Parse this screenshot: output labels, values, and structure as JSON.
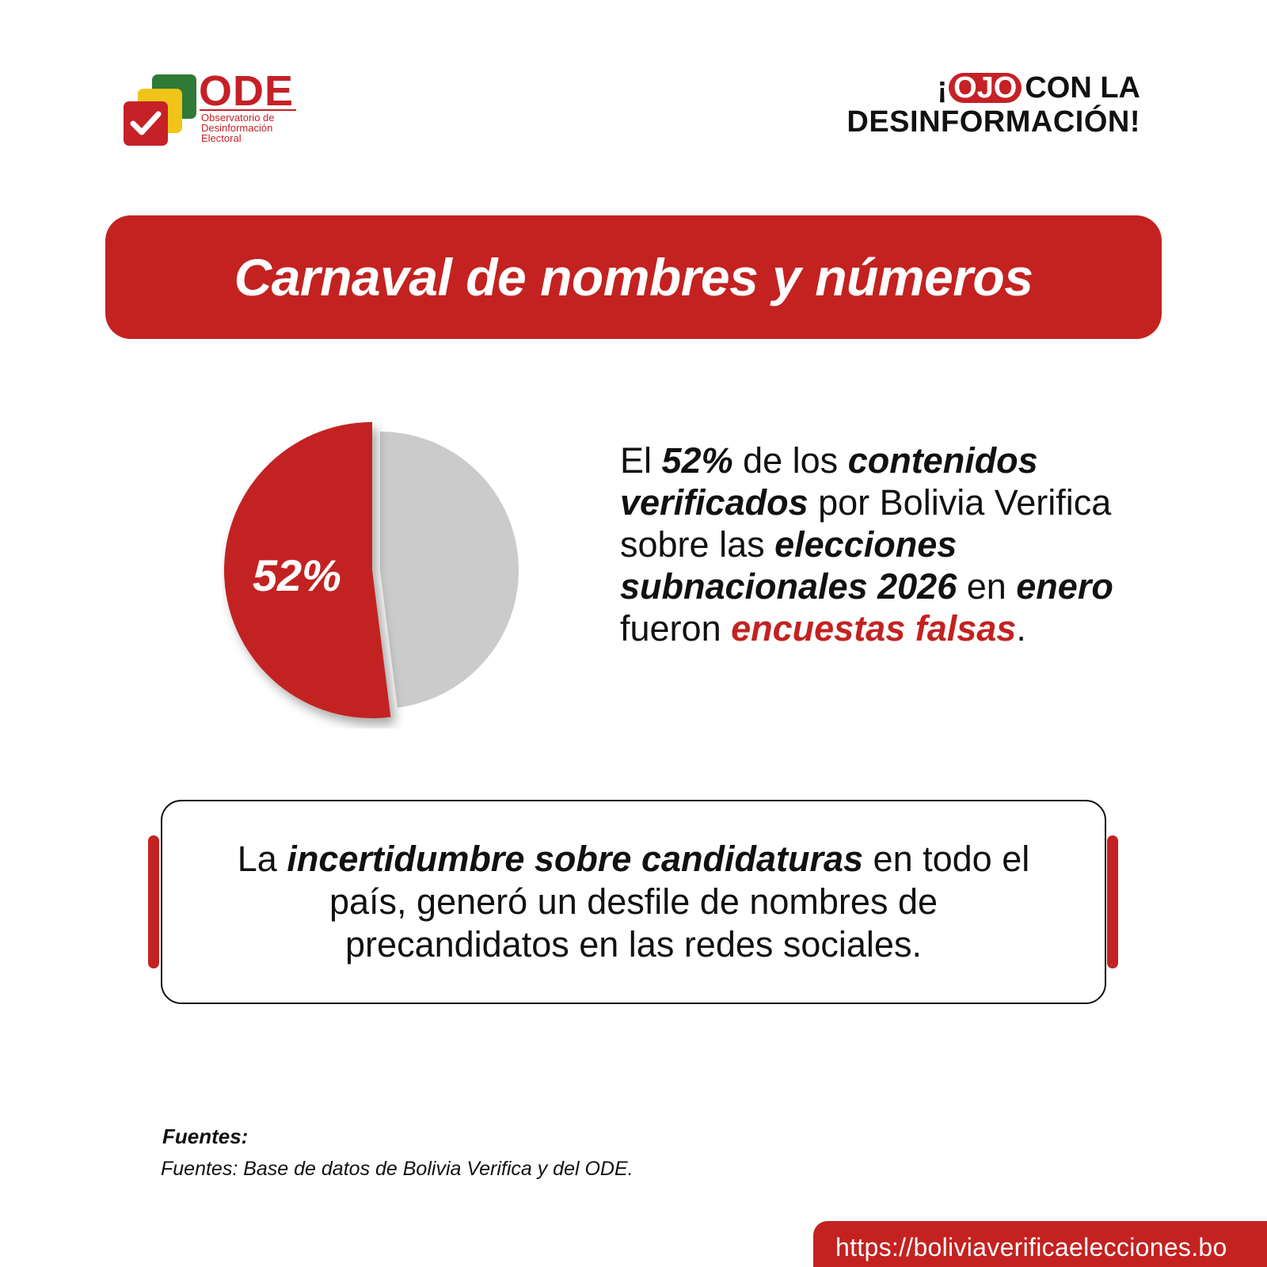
{
  "brand": {
    "logo_title": "ODE",
    "logo_subtitle": [
      "Observatorio de",
      "Desinformación",
      "Electoral"
    ],
    "colors": {
      "red": "#c32220",
      "yellow": "#f0c419",
      "green": "#2f7a37",
      "grey": "#cbcbcb"
    }
  },
  "slogan": {
    "open": "¡",
    "highlight": "OJO",
    "line1_rest": "CON LA",
    "line2": "DESINFORMACIÓN!"
  },
  "title": "Carnaval de nombres y números",
  "chart_data": {
    "type": "pie",
    "slices": [
      {
        "value": 52,
        "color": "#c32220",
        "label": "52%"
      },
      {
        "value": 48,
        "color": "#cbcbcb",
        "label": ""
      }
    ]
  },
  "description": {
    "p1": "El ",
    "b1": "52%",
    "p2": " de los ",
    "b2": "contenidos verificados",
    "p3": " por Bolivia Verifica sobre las ",
    "b3": "elecciones subnacionales 2026",
    "p4": " en ",
    "b4": "enero",
    "p5": " fueron ",
    "r1": "encuestas falsas",
    "p6": "."
  },
  "quote": {
    "p1": "La ",
    "b1": "incertidumbre sobre candidaturas",
    "p2": " en todo el país, generó un desfile de nombres de precandidatos en las redes sociales."
  },
  "sources": {
    "heading": "Fuentes:",
    "text": "Fuentes: Base de datos de Bolivia Verifica y del ODE."
  },
  "footer": {
    "url": "https://boliviaverificaelecciones.bo"
  }
}
